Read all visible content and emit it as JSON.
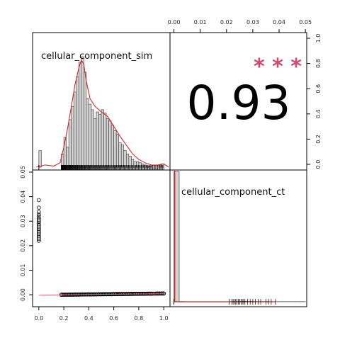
{
  "chart_data": {
    "type": "scatter-matrix",
    "variables": [
      "cellular_component_sim",
      "cellular_component_ct"
    ],
    "correlation": {
      "value": "0.93",
      "stars": "* * *",
      "star_color": "#d6456a"
    },
    "panel_sim_hist": {
      "type": "bar",
      "title": "cellular_component_sim",
      "bin_width": 0.02,
      "xlim": [
        -0.05,
        1.05
      ],
      "bins_x": [
        0.0,
        0.02,
        0.04,
        0.06,
        0.08,
        0.1,
        0.12,
        0.14,
        0.16,
        0.18,
        0.2,
        0.22,
        0.24,
        0.26,
        0.28,
        0.3,
        0.32,
        0.34,
        0.36,
        0.38,
        0.4,
        0.42,
        0.44,
        0.46,
        0.48,
        0.5,
        0.52,
        0.54,
        0.56,
        0.58,
        0.6,
        0.62,
        0.64,
        0.66,
        0.68,
        0.7,
        0.72,
        0.74,
        0.76,
        0.78,
        0.8,
        0.82,
        0.84,
        0.86,
        0.88,
        0.9,
        0.92,
        0.94,
        0.96,
        0.98
      ],
      "counts": [
        0.15,
        0,
        0,
        0,
        0,
        0,
        0,
        0,
        0,
        0.12,
        0.27,
        0.18,
        0.43,
        0.55,
        0.68,
        0.82,
        0.95,
        1.0,
        0.86,
        0.62,
        0.57,
        0.52,
        0.44,
        0.5,
        0.48,
        0.52,
        0.49,
        0.44,
        0.42,
        0.38,
        0.33,
        0.3,
        0.22,
        0.2,
        0.15,
        0.12,
        0.1,
        0.07,
        0.05,
        0.05,
        0.04,
        0.03,
        0.02,
        0.01,
        0.01,
        0,
        0,
        0,
        0.02,
        0.03
      ],
      "density_x": [
        -0.02,
        0.05,
        0.12,
        0.17,
        0.2,
        0.23,
        0.26,
        0.29,
        0.32,
        0.34,
        0.36,
        0.38,
        0.41,
        0.45,
        0.5,
        0.55,
        0.6,
        0.65,
        0.7,
        0.75,
        0.8,
        0.85,
        0.9,
        0.95,
        1.0,
        1.04
      ],
      "density_y": [
        0.0,
        0.02,
        0.01,
        0.04,
        0.18,
        0.35,
        0.55,
        0.75,
        0.9,
        0.97,
        0.93,
        0.78,
        0.62,
        0.55,
        0.5,
        0.46,
        0.37,
        0.28,
        0.2,
        0.12,
        0.07,
        0.04,
        0.02,
        0.02,
        0.03,
        0.0
      ],
      "rug_range": [
        0.18,
        1.0
      ]
    },
    "panel_scatter": {
      "type": "scatter",
      "x_ticks": [
        "0.0",
        "0.2",
        "0.4",
        "0.6",
        "0.8",
        "1.0"
      ],
      "y_ticks": [
        "0.00",
        "0.01",
        "0.02",
        "0.03",
        "0.04",
        "0.05"
      ],
      "xlim": [
        -0.05,
        1.05
      ],
      "ylim": [
        -0.002,
        0.05
      ],
      "points": [
        [
          0.0,
          0.0386
        ],
        [
          0.0,
          0.0355
        ],
        [
          0.0,
          0.0338
        ],
        [
          0.0,
          0.0328
        ],
        [
          0.0,
          0.032
        ],
        [
          0.0,
          0.0312
        ],
        [
          0.0,
          0.0305
        ],
        [
          0.0,
          0.0298
        ],
        [
          0.0,
          0.029
        ],
        [
          0.0,
          0.0283
        ],
        [
          0.0,
          0.0276
        ],
        [
          0.0,
          0.0269
        ],
        [
          0.0,
          0.0262
        ],
        [
          0.0,
          0.0255
        ],
        [
          0.0,
          0.0248
        ],
        [
          0.0,
          0.0241
        ],
        [
          0.0,
          0.0234
        ],
        [
          0.0,
          0.0227
        ],
        [
          0.0,
          0.022
        ],
        [
          0.18,
          0.0
        ],
        [
          0.2,
          0.0
        ],
        [
          0.22,
          0.0
        ],
        [
          0.24,
          0.0
        ],
        [
          0.26,
          0.0
        ],
        [
          0.28,
          0.0
        ],
        [
          0.3,
          0.0
        ],
        [
          0.32,
          0.0
        ],
        [
          0.34,
          0.0001
        ],
        [
          0.36,
          0.0001
        ],
        [
          0.38,
          0.0001
        ],
        [
          0.4,
          0.0001
        ],
        [
          0.42,
          0.0001
        ],
        [
          0.44,
          0.0001
        ],
        [
          0.46,
          0.0001
        ],
        [
          0.48,
          0.0002
        ],
        [
          0.5,
          0.0002
        ],
        [
          0.52,
          0.0002
        ],
        [
          0.54,
          0.0002
        ],
        [
          0.56,
          0.0002
        ],
        [
          0.58,
          0.0002
        ],
        [
          0.6,
          0.0003
        ],
        [
          0.62,
          0.0003
        ],
        [
          0.64,
          0.0003
        ],
        [
          0.66,
          0.0003
        ],
        [
          0.68,
          0.0003
        ],
        [
          0.7,
          0.0003
        ],
        [
          0.72,
          0.0003
        ],
        [
          0.74,
          0.0004
        ],
        [
          0.76,
          0.0004
        ],
        [
          0.78,
          0.0004
        ],
        [
          0.8,
          0.0004
        ],
        [
          0.82,
          0.0004
        ],
        [
          0.84,
          0.0004
        ],
        [
          0.86,
          0.0004
        ],
        [
          0.9,
          0.0004
        ],
        [
          0.95,
          0.0005
        ],
        [
          0.99,
          0.0005
        ],
        [
          1.0,
          0.0005
        ]
      ],
      "loess_x": [
        0.0,
        0.2,
        0.4,
        0.6,
        0.8,
        1.0
      ],
      "loess_y": [
        -0.0002,
        0.0,
        0.0001,
        0.0002,
        0.0003,
        0.0004
      ]
    },
    "panel_ct_hist": {
      "type": "bar",
      "title": "cellular_component_ct",
      "x_ticks": [
        "0.00",
        "0.01",
        "0.02",
        "0.03",
        "0.04",
        "0.05"
      ],
      "xlim": [
        -0.0015,
        0.0505
      ],
      "bin_width": 0.002,
      "bins_x": [
        0.0,
        0.002,
        0.004,
        0.006,
        0.008,
        0.01,
        0.012,
        0.014,
        0.016,
        0.018,
        0.02,
        0.022,
        0.024,
        0.026,
        0.028,
        0.03,
        0.032,
        0.034,
        0.036,
        0.038,
        0.04,
        0.042,
        0.044,
        0.046,
        0.048
      ],
      "counts": [
        1.0,
        0.002,
        0.001,
        0.001,
        0.001,
        0.001,
        0.001,
        0.001,
        0.001,
        0.001,
        0.001,
        0.002,
        0.003,
        0.004,
        0.003,
        0.002,
        0.002,
        0.002,
        0.001,
        0.001,
        0.001,
        0.001,
        0.001,
        0.001,
        0.001
      ],
      "rug_x": [
        0.0,
        0.0,
        0.0,
        0.021,
        0.022,
        0.0225,
        0.023,
        0.0235,
        0.024,
        0.0245,
        0.025,
        0.0255,
        0.026,
        0.0265,
        0.027,
        0.028,
        0.029,
        0.03,
        0.031,
        0.032,
        0.033,
        0.035,
        0.036,
        0.037,
        0.0386
      ]
    },
    "panel_corr": {
      "y_ticks": [
        "0.0",
        "0.2",
        "0.4",
        "0.6",
        "0.8",
        "1.0"
      ]
    }
  }
}
